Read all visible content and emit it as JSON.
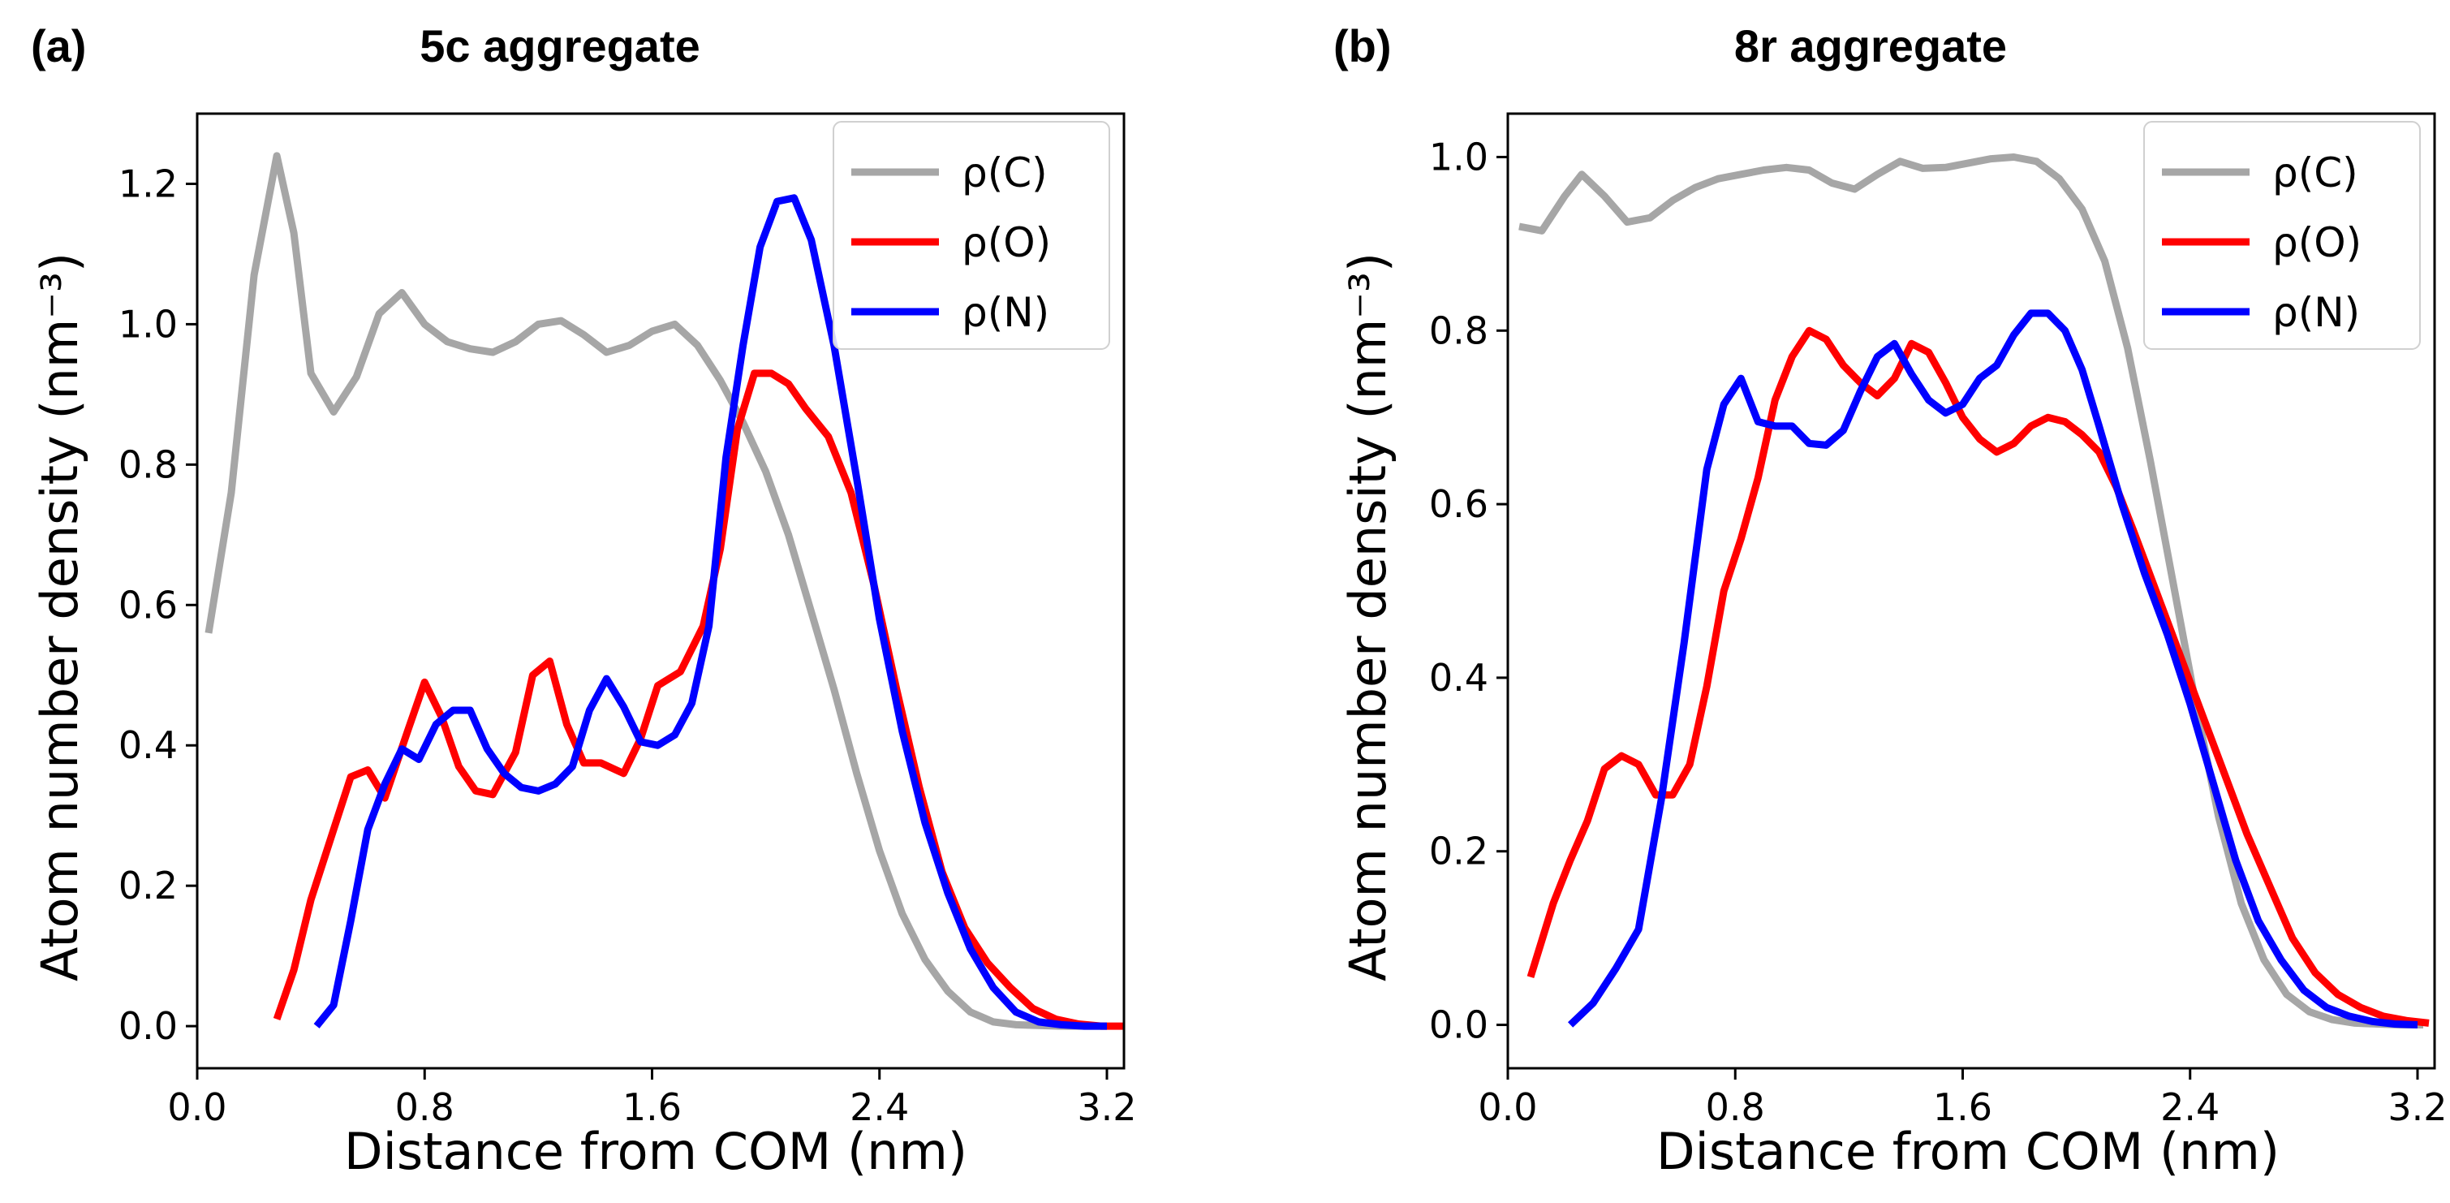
{
  "chart_data": [
    {
      "panel_label": "(a)",
      "type": "line",
      "title": "5c aggregate",
      "xlabel": "Distance from COM (nm)",
      "ylabel": "Atom number density (nm⁻³)",
      "xlim": [
        0.0,
        3.26
      ],
      "ylim": [
        -0.06,
        1.3
      ],
      "xticks": [
        0.0,
        0.8,
        1.6,
        2.4,
        3.2
      ],
      "xtick_labels": [
        "0.0",
        "0.8",
        "1.6",
        "2.4",
        "3.2"
      ],
      "yticks": [
        0.0,
        0.2,
        0.4,
        0.6,
        0.8,
        1.0,
        1.2
      ],
      "ytick_labels": [
        "0.0",
        "0.2",
        "0.4",
        "0.6",
        "0.8",
        "1.0",
        "1.2"
      ],
      "legend_position": "top-right",
      "series": [
        {
          "name": "ρ(C)",
          "color": "#a6a6a6",
          "x": [
            0.04,
            0.12,
            0.2,
            0.28,
            0.34,
            0.4,
            0.48,
            0.56,
            0.64,
            0.72,
            0.8,
            0.88,
            0.96,
            1.04,
            1.12,
            1.2,
            1.28,
            1.36,
            1.44,
            1.52,
            1.6,
            1.68,
            1.76,
            1.84,
            1.92,
            2.0,
            2.08,
            2.16,
            2.24,
            2.32,
            2.4,
            2.48,
            2.56,
            2.64,
            2.72,
            2.8,
            2.88,
            2.96,
            3.04,
            3.12,
            3.2
          ],
          "y": [
            0.56,
            0.76,
            1.07,
            1.24,
            1.13,
            0.93,
            0.875,
            0.925,
            1.015,
            1.045,
            1.0,
            0.975,
            0.965,
            0.96,
            0.975,
            1.0,
            1.005,
            0.985,
            0.96,
            0.97,
            0.99,
            1.0,
            0.97,
            0.92,
            0.86,
            0.79,
            0.7,
            0.59,
            0.48,
            0.36,
            0.25,
            0.16,
            0.095,
            0.05,
            0.02,
            0.006,
            0.002,
            0.001,
            0.0,
            0.0,
            0.0
          ]
        },
        {
          "name": "ρ(O)",
          "color": "#ff0000",
          "x": [
            0.28,
            0.34,
            0.4,
            0.48,
            0.54,
            0.6,
            0.66,
            0.74,
            0.8,
            0.86,
            0.92,
            0.98,
            1.04,
            1.12,
            1.18,
            1.24,
            1.3,
            1.36,
            1.42,
            1.5,
            1.56,
            1.62,
            1.7,
            1.78,
            1.84,
            1.9,
            1.96,
            2.02,
            2.08,
            2.14,
            2.22,
            2.3,
            2.38,
            2.46,
            2.54,
            2.62,
            2.7,
            2.78,
            2.86,
            2.94,
            3.02,
            3.1,
            3.18,
            3.26
          ],
          "y": [
            0.01,
            0.08,
            0.18,
            0.28,
            0.355,
            0.365,
            0.325,
            0.42,
            0.49,
            0.44,
            0.37,
            0.335,
            0.33,
            0.39,
            0.5,
            0.52,
            0.43,
            0.375,
            0.375,
            0.36,
            0.41,
            0.485,
            0.505,
            0.57,
            0.68,
            0.85,
            0.93,
            0.93,
            0.915,
            0.88,
            0.84,
            0.76,
            0.63,
            0.48,
            0.34,
            0.22,
            0.14,
            0.09,
            0.055,
            0.025,
            0.01,
            0.003,
            0.0,
            0.0
          ]
        },
        {
          "name": "ρ(N)",
          "color": "#0000ff",
          "x": [
            0.42,
            0.48,
            0.54,
            0.6,
            0.66,
            0.72,
            0.78,
            0.84,
            0.9,
            0.96,
            1.02,
            1.08,
            1.14,
            1.2,
            1.26,
            1.32,
            1.38,
            1.44,
            1.5,
            1.56,
            1.62,
            1.68,
            1.74,
            1.8,
            1.86,
            1.92,
            1.98,
            2.04,
            2.1,
            2.16,
            2.24,
            2.32,
            2.4,
            2.48,
            2.56,
            2.64,
            2.72,
            2.8,
            2.88,
            2.96,
            3.04,
            3.12,
            3.2
          ],
          "y": [
            0.0,
            0.03,
            0.15,
            0.28,
            0.345,
            0.395,
            0.38,
            0.43,
            0.45,
            0.45,
            0.395,
            0.36,
            0.34,
            0.335,
            0.345,
            0.37,
            0.45,
            0.495,
            0.455,
            0.405,
            0.4,
            0.415,
            0.46,
            0.57,
            0.81,
            0.97,
            1.11,
            1.175,
            1.18,
            1.12,
            0.97,
            0.78,
            0.58,
            0.42,
            0.29,
            0.19,
            0.11,
            0.055,
            0.02,
            0.006,
            0.002,
            0.0,
            0.0
          ]
        }
      ]
    },
    {
      "panel_label": "(b)",
      "type": "line",
      "title": "8r aggregate",
      "xlabel": "Distance from COM (nm)",
      "ylabel": "Atom number density (nm⁻³)",
      "xlim": [
        0.0,
        3.26
      ],
      "ylim": [
        -0.05,
        1.05
      ],
      "xticks": [
        0.0,
        0.8,
        1.6,
        2.4,
        3.2
      ],
      "xtick_labels": [
        "0.0",
        "0.8",
        "1.6",
        "2.4",
        "3.2"
      ],
      "yticks": [
        0.0,
        0.2,
        0.4,
        0.6,
        0.8,
        1.0
      ],
      "ytick_labels": [
        "0.0",
        "0.2",
        "0.4",
        "0.6",
        "0.8",
        "1.0"
      ],
      "legend_position": "top-right",
      "series": [
        {
          "name": "ρ(C)",
          "color": "#a6a6a6",
          "x": [
            0.04,
            0.12,
            0.2,
            0.26,
            0.34,
            0.42,
            0.5,
            0.58,
            0.66,
            0.74,
            0.82,
            0.9,
            0.98,
            1.06,
            1.14,
            1.22,
            1.3,
            1.38,
            1.46,
            1.54,
            1.62,
            1.7,
            1.78,
            1.86,
            1.94,
            2.02,
            2.1,
            2.18,
            2.26,
            2.34,
            2.42,
            2.5,
            2.58,
            2.66,
            2.74,
            2.82,
            2.9,
            2.98,
            3.06,
            3.14,
            3.22
          ],
          "y": [
            0.92,
            0.915,
            0.955,
            0.98,
            0.955,
            0.925,
            0.93,
            0.95,
            0.965,
            0.975,
            0.98,
            0.985,
            0.988,
            0.985,
            0.97,
            0.963,
            0.98,
            0.995,
            0.987,
            0.988,
            0.993,
            0.998,
            1.0,
            0.995,
            0.975,
            0.94,
            0.88,
            0.78,
            0.65,
            0.51,
            0.37,
            0.24,
            0.14,
            0.075,
            0.035,
            0.015,
            0.006,
            0.002,
            0.001,
            0.0,
            0.0
          ]
        },
        {
          "name": "ρ(O)",
          "color": "#ff0000",
          "x": [
            0.08,
            0.16,
            0.22,
            0.28,
            0.34,
            0.4,
            0.46,
            0.52,
            0.58,
            0.64,
            0.7,
            0.76,
            0.82,
            0.88,
            0.94,
            1.0,
            1.06,
            1.12,
            1.18,
            1.24,
            1.3,
            1.36,
            1.42,
            1.48,
            1.54,
            1.6,
            1.66,
            1.72,
            1.78,
            1.84,
            1.9,
            1.96,
            2.02,
            2.08,
            2.14,
            2.2,
            2.28,
            2.36,
            2.44,
            2.52,
            2.6,
            2.68,
            2.76,
            2.84,
            2.92,
            3.0,
            3.08,
            3.16,
            3.24
          ],
          "y": [
            0.055,
            0.14,
            0.19,
            0.235,
            0.295,
            0.31,
            0.3,
            0.265,
            0.265,
            0.3,
            0.39,
            0.5,
            0.56,
            0.63,
            0.72,
            0.77,
            0.8,
            0.79,
            0.76,
            0.74,
            0.725,
            0.745,
            0.785,
            0.775,
            0.74,
            0.7,
            0.675,
            0.66,
            0.67,
            0.69,
            0.7,
            0.695,
            0.68,
            0.66,
            0.62,
            0.57,
            0.5,
            0.43,
            0.36,
            0.29,
            0.22,
            0.16,
            0.1,
            0.06,
            0.035,
            0.02,
            0.01,
            0.005,
            0.002
          ]
        },
        {
          "name": "ρ(N)",
          "color": "#0000ff",
          "x": [
            0.22,
            0.3,
            0.38,
            0.46,
            0.54,
            0.62,
            0.7,
            0.76,
            0.82,
            0.88,
            0.94,
            1.0,
            1.06,
            1.12,
            1.18,
            1.24,
            1.3,
            1.36,
            1.42,
            1.48,
            1.54,
            1.6,
            1.66,
            1.72,
            1.78,
            1.84,
            1.9,
            1.96,
            2.02,
            2.08,
            2.16,
            2.24,
            2.32,
            2.4,
            2.48,
            2.56,
            2.64,
            2.72,
            2.8,
            2.88,
            2.96,
            3.04,
            3.12,
            3.2
          ],
          "y": [
            0.0,
            0.025,
            0.065,
            0.11,
            0.26,
            0.44,
            0.64,
            0.715,
            0.745,
            0.695,
            0.69,
            0.69,
            0.67,
            0.668,
            0.685,
            0.73,
            0.77,
            0.785,
            0.75,
            0.72,
            0.705,
            0.715,
            0.745,
            0.76,
            0.795,
            0.82,
            0.82,
            0.8,
            0.755,
            0.69,
            0.6,
            0.52,
            0.45,
            0.37,
            0.28,
            0.19,
            0.12,
            0.075,
            0.04,
            0.02,
            0.01,
            0.004,
            0.001,
            0.0
          ]
        }
      ]
    }
  ]
}
